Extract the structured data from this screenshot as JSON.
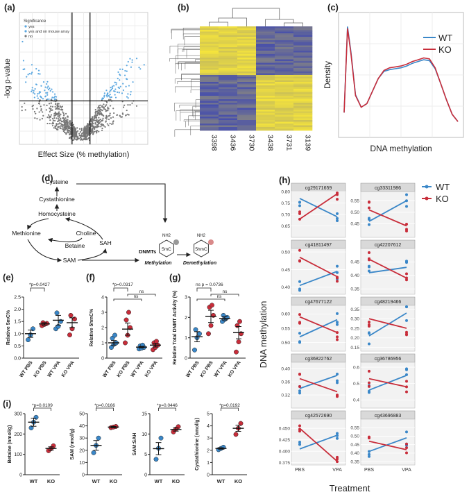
{
  "panel_labels": [
    "(a)",
    "(b)",
    "(c)",
    "(d)",
    "(e)",
    "(f)",
    "(g)",
    "(h)",
    "(i)"
  ],
  "colors": {
    "wt": "#3a87c8",
    "ko": "#c82d3a",
    "volcano_sig": "#5aa7e0",
    "volcano_ns": "#777777",
    "heat_low": "#3f48b0",
    "heat_high": "#f5e43c"
  },
  "chart_data": [
    {
      "id": "a",
      "type": "scatter",
      "title": "",
      "xlabel": "Effect Size (% methylation)",
      "ylabel": "-log p-value",
      "legend": {
        "title": "Significance",
        "entries": [
          "yes",
          "yes and on mouse array",
          "no"
        ],
        "placement": "top-left"
      },
      "xlim": [
        -50,
        50
      ],
      "grid": true
    },
    {
      "id": "b",
      "type": "heatmap",
      "columns": [
        "3398",
        "3436",
        "3730",
        "3438",
        "3731",
        "3139"
      ],
      "column_groups": [
        [
          "3398",
          "3436",
          "3730"
        ],
        [
          "3438",
          "3731",
          "3139"
        ]
      ],
      "dendrogram": true
    },
    {
      "id": "c",
      "type": "line",
      "xlabel": "DNA methylation",
      "ylabel": "Density",
      "xlim": [
        0,
        1
      ],
      "series": [
        {
          "name": "WT",
          "x": [
            0.0,
            0.03,
            0.06,
            0.1,
            0.15,
            0.2,
            0.25,
            0.3,
            0.35,
            0.4,
            0.45,
            0.5,
            0.55,
            0.6,
            0.65,
            0.7,
            0.75,
            0.8,
            0.85,
            0.9,
            0.95,
            1.0
          ],
          "y": [
            1.0,
            5.8,
            4.4,
            2.0,
            1.3,
            1.5,
            2.2,
            2.9,
            3.3,
            3.4,
            3.45,
            3.5,
            3.6,
            3.75,
            3.85,
            3.95,
            3.9,
            3.45,
            2.6,
            1.7,
            0.9,
            0.5
          ]
        },
        {
          "name": "KO",
          "x": [
            0.0,
            0.03,
            0.06,
            0.1,
            0.15,
            0.2,
            0.25,
            0.3,
            0.35,
            0.4,
            0.45,
            0.5,
            0.55,
            0.6,
            0.65,
            0.7,
            0.75,
            0.8,
            0.85,
            0.9,
            0.95,
            1.0
          ],
          "y": [
            1.0,
            5.7,
            4.3,
            1.95,
            1.3,
            1.5,
            2.2,
            2.9,
            3.35,
            3.5,
            3.55,
            3.6,
            3.7,
            3.85,
            3.95,
            4.05,
            4.0,
            3.5,
            2.6,
            1.7,
            0.9,
            0.5
          ]
        }
      ],
      "legend_placement": "top-right",
      "grid": true
    },
    {
      "id": "e",
      "type": "scatter",
      "ylabel": "Relative 5mC%",
      "categories": [
        "WT PBS",
        "KO PBS",
        "WT VPA",
        "KO VPA"
      ],
      "ylim": [
        0,
        2.5
      ],
      "yticks": [
        "0.0",
        "0.5",
        "1.0",
        "1.5",
        "2.0",
        "2.5"
      ],
      "annotations": [
        "*p=0.0427"
      ],
      "series": [
        {
          "group": "WT PBS",
          "color": "wt",
          "points": [
            0.75,
            0.95,
            1.2
          ],
          "mean": 1.0,
          "sem": 0.15
        },
        {
          "group": "KO PBS",
          "color": "ko",
          "points": [
            1.33,
            1.38,
            1.42,
            1.45
          ],
          "mean": 1.4,
          "sem": 0.05
        },
        {
          "group": "WT VPA",
          "color": "wt",
          "points": [
            1.2,
            1.3,
            1.5,
            1.85
          ],
          "mean": 1.55,
          "sem": 0.2
        },
        {
          "group": "KO VPA",
          "color": "ko",
          "points": [
            0.95,
            1.2,
            1.6,
            1.75
          ],
          "mean": 1.45,
          "sem": 0.2
        }
      ]
    },
    {
      "id": "f",
      "type": "scatter",
      "ylabel": "Relative 5hmC%",
      "categories": [
        "WT PBS",
        "KO PBS",
        "WT VPA",
        "KO VPA"
      ],
      "ylim": [
        0,
        4
      ],
      "yticks": [
        "0",
        "1",
        "2",
        "3",
        "4"
      ],
      "annotations": [
        "*p=0.0317",
        "ns",
        "ns"
      ],
      "series": [
        {
          "group": "WT PBS",
          "color": "wt",
          "points": [
            0.7,
            0.9,
            1.0,
            1.3,
            1.5
          ],
          "mean": 1.0,
          "sem": 0.15
        },
        {
          "group": "KO PBS",
          "color": "ko",
          "points": [
            1.0,
            1.5,
            2.0,
            2.5,
            3.0
          ],
          "mean": 1.9,
          "sem": 0.4
        },
        {
          "group": "WT VPA",
          "color": "wt",
          "points": [
            0.6,
            0.65,
            0.7,
            0.8,
            0.85
          ],
          "mean": 0.72,
          "sem": 0.05
        },
        {
          "group": "KO VPA",
          "color": "ko",
          "points": [
            0.55,
            0.7,
            0.85,
            1.0,
            1.1
          ],
          "mean": 0.85,
          "sem": 0.12
        }
      ]
    },
    {
      "id": "g",
      "type": "scatter",
      "ylabel": "Relative Total DNMT Activity (%)",
      "categories": [
        "WT PBS",
        "KO PBS",
        "WT VPA",
        "KO VPA"
      ],
      "ylim": [
        0,
        3
      ],
      "yticks": [
        "0",
        "1",
        "2",
        "3"
      ],
      "annotations": [
        "ns p = 0.0736",
        "ns",
        "ns"
      ],
      "series": [
        {
          "group": "WT PBS",
          "color": "wt",
          "points": [
            0.4,
            1.0,
            1.2,
            1.4
          ],
          "mean": 1.05,
          "sem": 0.25
        },
        {
          "group": "KO PBS",
          "color": "ko",
          "points": [
            1.2,
            1.6,
            2.1,
            2.5,
            2.6
          ],
          "mean": 2.05,
          "sem": 0.3
        },
        {
          "group": "WT VPA",
          "color": "wt",
          "points": [
            1.8,
            1.9,
            2.0,
            2.1
          ],
          "mean": 1.95,
          "sem": 0.08
        },
        {
          "group": "KO VPA",
          "color": "ko",
          "points": [
            0.3,
            0.8,
            1.2,
            1.6,
            1.8
          ],
          "mean": 1.25,
          "sem": 0.3
        }
      ]
    },
    {
      "id": "i",
      "type": "scatter",
      "subplots": [
        {
          "ylabel": "Betaine (nmol/g)",
          "categories": [
            "WT",
            "KO"
          ],
          "ylim": [
            0,
            300
          ],
          "yticks": [
            "0",
            "100",
            "200",
            "300"
          ],
          "annotation": "*p=0.0109",
          "series": [
            {
              "group": "WT",
              "color": "wt",
              "points": [
                230,
                258,
                282
              ],
              "mean": 258,
              "sem": 20
            },
            {
              "group": "KO",
              "color": "ko",
              "points": [
                118,
                128,
                142
              ],
              "mean": 129,
              "sem": 8
            }
          ]
        },
        {
          "ylabel": "SAM (nmol/g)",
          "categories": [
            "WT",
            "KO"
          ],
          "ylim": [
            0,
            50
          ],
          "yticks": [
            "0",
            "10",
            "20",
            "30",
            "40",
            "50"
          ],
          "annotation": "*p=0.0166",
          "series": [
            {
              "group": "WT",
              "color": "wt",
              "points": [
                18,
                24,
                30
              ],
              "mean": 24,
              "sem": 4
            },
            {
              "group": "KO",
              "color": "ko",
              "points": [
                38.5,
                39,
                39.5
              ],
              "mean": 39,
              "sem": 0.5
            }
          ]
        },
        {
          "ylabel": "SAM:SAH",
          "categories": [
            "WT",
            "KO"
          ],
          "ylim": [
            0,
            15
          ],
          "yticks": [
            "0",
            "5",
            "10",
            "15"
          ],
          "annotation": "*p=0.0446",
          "series": [
            {
              "group": "WT",
              "color": "wt",
              "points": [
                3.8,
                6.5,
                9.0
              ],
              "mean": 6.4,
              "sem": 1.5
            },
            {
              "group": "KO",
              "color": "ko",
              "points": [
                10.5,
                11.2,
                11.8
              ],
              "mean": 11.1,
              "sem": 0.4
            }
          ]
        },
        {
          "ylabel": "Cystathionine (nmol/g)",
          "categories": [
            "WT",
            "KO"
          ],
          "ylim": [
            0,
            5
          ],
          "yticks": [
            "0",
            "1",
            "2",
            "3",
            "4",
            "5"
          ],
          "annotation": "*p=0.0192",
          "series": [
            {
              "group": "WT",
              "color": "wt",
              "points": [
                2.05,
                2.15,
                2.25
              ],
              "mean": 2.15,
              "sem": 0.06
            },
            {
              "group": "KO",
              "color": "ko",
              "points": [
                3.3,
                3.8,
                4.2
              ],
              "mean": 3.8,
              "sem": 0.25
            }
          ]
        }
      ]
    },
    {
      "id": "h",
      "type": "line",
      "xlabel": "Treatment",
      "ylabel": "DNA methylation",
      "categories": [
        "PBS",
        "VPA"
      ],
      "legend": {
        "entries": [
          "WT",
          "KO"
        ],
        "placement": "top-right"
      },
      "facets": [
        {
          "probe": "cg29171659",
          "ylim": [
            0.6,
            0.8
          ],
          "yticks": [
            "0.65",
            "0.70",
            "0.75",
            "0.80"
          ],
          "wt": [
            0.77,
            0.69
          ],
          "ko": [
            0.68,
            0.79
          ]
        },
        {
          "probe": "cg33311986",
          "ylim": [
            0.39,
            0.59
          ],
          "yticks": [
            "0.45",
            "0.50",
            "0.55"
          ],
          "wt": [
            0.46,
            0.55
          ],
          "ko": [
            0.51,
            0.44
          ]
        },
        {
          "probe": "cg41811497",
          "ylim": [
            0.38,
            0.51
          ],
          "yticks": [
            "0.40",
            "0.45",
            "0.50"
          ],
          "wt": [
            0.405,
            0.445
          ],
          "ko": [
            0.485,
            0.43
          ]
        },
        {
          "probe": "cg42207612",
          "ylim": [
            0.33,
            0.5
          ],
          "yticks": [
            "0.35",
            "0.40",
            "0.45"
          ],
          "wt": [
            0.41,
            0.43
          ],
          "ko": [
            0.46,
            0.39
          ]
        },
        {
          "probe": "cg47677122",
          "ylim": [
            0.47,
            0.63
          ],
          "yticks": [
            "0.50",
            "0.55",
            "0.60"
          ],
          "wt": [
            0.52,
            0.58
          ],
          "ko": [
            0.59,
            0.535
          ]
        },
        {
          "probe": "cg48219466",
          "ylim": [
            0.13,
            0.37
          ],
          "yticks": [
            "0.15",
            "0.20",
            "0.25",
            "0.30",
            "0.35"
          ],
          "wt": [
            0.21,
            0.33
          ],
          "ko": [
            0.3,
            0.25
          ]
        },
        {
          "probe": "cg36822762",
          "ylim": [
            0.28,
            0.42
          ],
          "yticks": [
            "0.32",
            "0.36",
            "0.40"
          ],
          "wt": [
            0.34,
            0.38
          ],
          "ko": [
            0.37,
            0.33
          ]
        },
        {
          "probe": "cg36786956",
          "ylim": [
            0.35,
            0.63
          ],
          "yticks": [
            "0.4",
            "0.5",
            "0.6"
          ],
          "wt": [
            0.46,
            0.55
          ],
          "ko": [
            0.53,
            0.48
          ]
        },
        {
          "probe": "cg42572690",
          "ylim": [
            0.37,
            0.47
          ],
          "yticks": [
            "0.375",
            "0.400",
            "0.425",
            "0.450"
          ],
          "wt": [
            0.405,
            0.435
          ],
          "ko": [
            0.45,
            0.378
          ]
        },
        {
          "probe": "cg43696883",
          "ylim": [
            0.33,
            0.6
          ],
          "yticks": [
            "0.35",
            "0.40",
            "0.45",
            "0.50",
            "0.55"
          ],
          "wt": [
            0.41,
            0.49
          ],
          "ko": [
            0.47,
            0.42
          ]
        }
      ]
    }
  ],
  "pathway": {
    "nodes": [
      "Cysteine",
      "Cystathionine",
      "Homocysteine",
      "Methionine",
      "Choline",
      "SAH",
      "Betaine",
      "SAM"
    ],
    "enzyme": "DNMTs",
    "bases": [
      "5mC",
      "5hmC"
    ],
    "base_group": "NH2",
    "steps": [
      "Methylation",
      "Demethylation"
    ]
  }
}
